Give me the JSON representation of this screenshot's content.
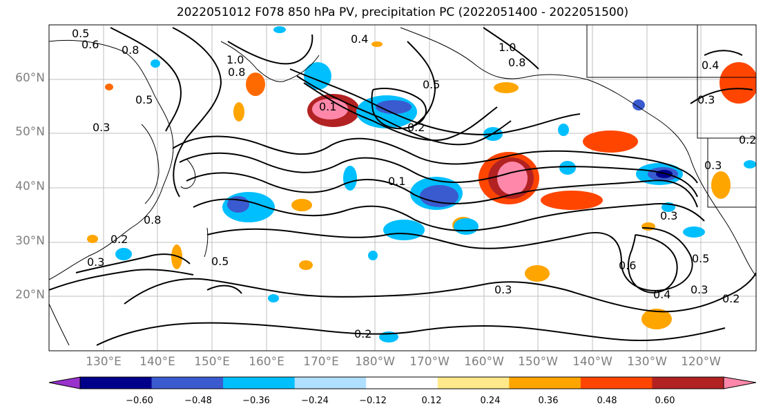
{
  "title": "2022051012 F078 850 hPa PV, precipitation PC (2022051400 - 2022051500)",
  "map": {
    "lat_labels": [
      "60°N",
      "50°N",
      "40°N",
      "30°N",
      "20°N"
    ],
    "lon_labels": [
      "130°E",
      "140°E",
      "150°E",
      "160°E",
      "170°E",
      "180°W",
      "170°W",
      "160°W",
      "150°W",
      "140°W",
      "130°W",
      "120°W"
    ],
    "contour_labels": [
      "0.5",
      "0.6",
      "0.8",
      "0.5",
      "1.0",
      "0.8",
      "0.3",
      "0.4",
      "1.0",
      "0.8",
      "0.3",
      "0.5",
      "0.2",
      "0.3",
      "0.4",
      "0.1",
      "0.2",
      "0.3",
      "0.8",
      "0.5",
      "0.3",
      "0.2",
      "0.6",
      "0.5",
      "0.3",
      "0.2",
      "0.4",
      "0.1",
      "0.3",
      "0.2"
    ],
    "grid": true
  },
  "colorbar": {
    "ticks": [
      "−0.60",
      "−0.48",
      "−0.36",
      "−0.24",
      "−0.12",
      "0.12",
      "0.24",
      "0.36",
      "0.48",
      "0.60"
    ],
    "colors": [
      "#9932cc",
      "#00008b",
      "#3a5bcf",
      "#00bfff",
      "#b0e0ff",
      "#ffffff",
      "#ffe98a",
      "#ffa500",
      "#ff4500",
      "#b22222",
      "#ff88aa"
    ]
  }
}
